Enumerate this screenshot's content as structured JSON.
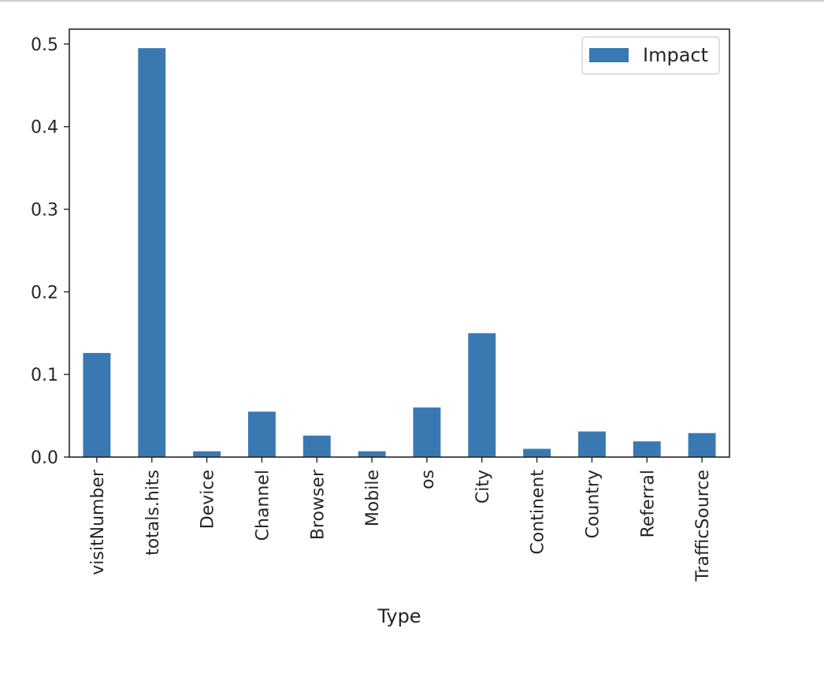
{
  "chart_data": {
    "type": "bar",
    "title": "",
    "xlabel": "Type",
    "ylabel": "",
    "categories": [
      "visitNumber",
      "totals.hits",
      "Device",
      "Channel",
      "Browser",
      "Mobile",
      "os",
      "City",
      "Continent",
      "Country",
      "Referral",
      "TrafficSource"
    ],
    "series": [
      {
        "name": "Impact",
        "values": [
          0.126,
          0.495,
          0.007,
          0.055,
          0.026,
          0.007,
          0.06,
          0.15,
          0.01,
          0.031,
          0.019,
          0.029
        ]
      }
    ],
    "ylim": [
      0,
      0.518
    ],
    "yticks": [
      0.0,
      0.1,
      0.2,
      0.3,
      0.4,
      0.5
    ],
    "ytick_labels": [
      "0.0",
      "0.1",
      "0.2",
      "0.3",
      "0.4",
      "0.5"
    ],
    "legend_position": "top-right",
    "grid": false,
    "colors": {
      "bar": "#3a78b1",
      "axis": "#262626",
      "legend_border": "#cccccc"
    }
  }
}
